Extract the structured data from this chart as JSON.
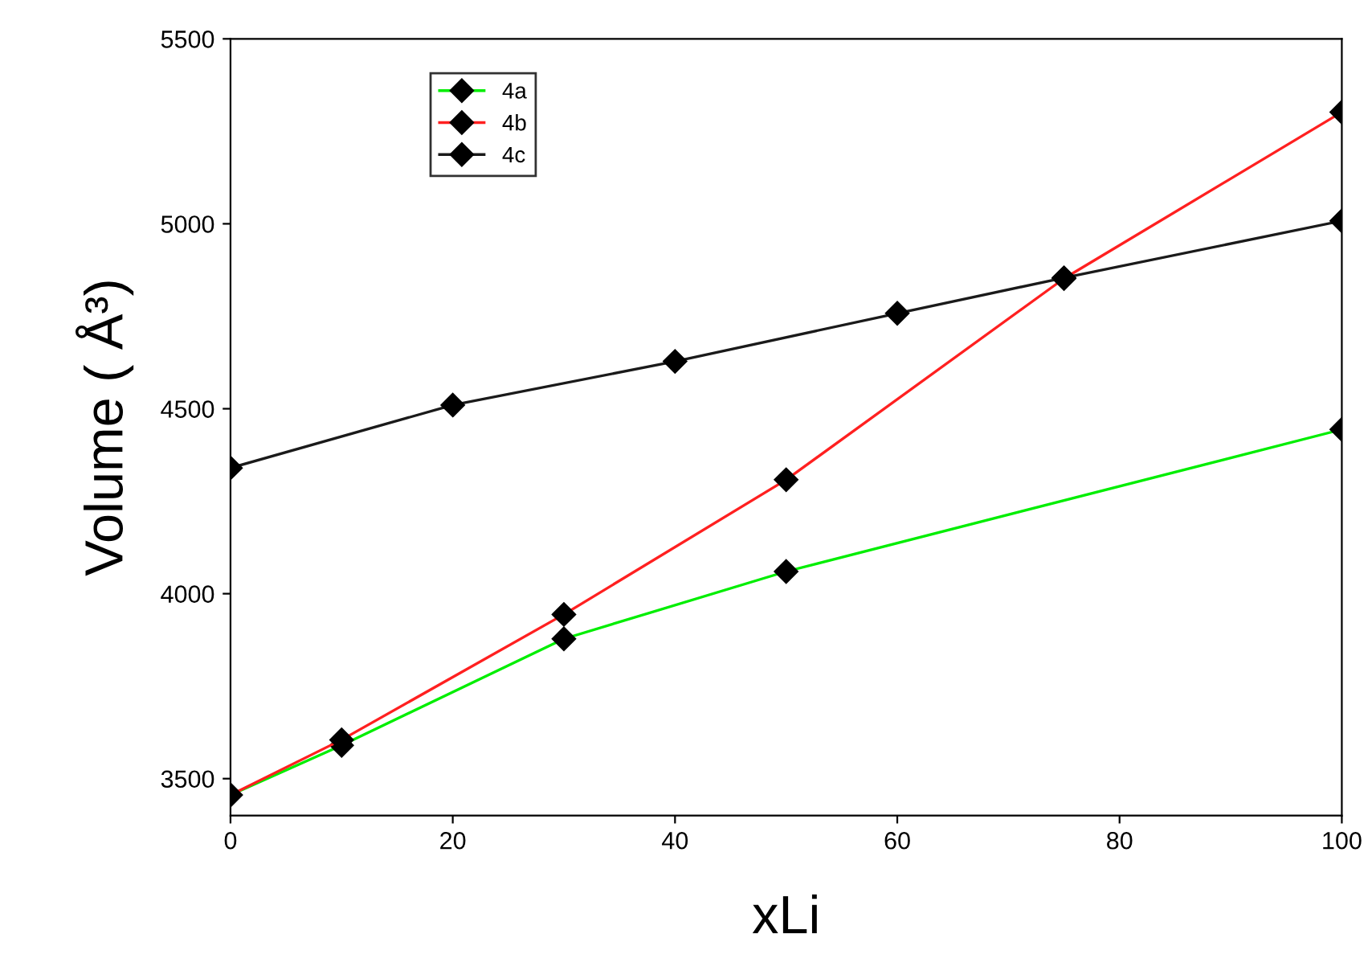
{
  "chart_data": {
    "type": "line",
    "xlabel": "xLi",
    "ylabel": "Volume ( Å³)",
    "xlim": [
      0,
      100
    ],
    "xticks": [
      0,
      20,
      40,
      60,
      80,
      100
    ],
    "ylim": [
      3400,
      5500
    ],
    "yticks": [
      3500,
      4000,
      4500,
      5000,
      5500
    ],
    "grid": false,
    "legend": "top left",
    "marker": "diamond",
    "line_style": "solid",
    "series": [
      {
        "name": "4a",
        "color": "#00ee00",
        "x": [
          0,
          10,
          30,
          50,
          100
        ],
        "values": [
          3456,
          3590,
          3878,
          4060,
          4444
        ]
      },
      {
        "name": "4b",
        "color": "#ff2020",
        "x": [
          0,
          10,
          30,
          50,
          75,
          100
        ],
        "values": [
          3456,
          3605,
          3944,
          4308,
          4852,
          5302
        ]
      },
      {
        "name": "4c",
        "color": "#1a1a1a",
        "x": [
          0,
          20,
          40,
          60,
          75,
          100
        ],
        "values": [
          4340,
          4510,
          4628,
          4758,
          4854,
          5008
        ]
      }
    ]
  }
}
